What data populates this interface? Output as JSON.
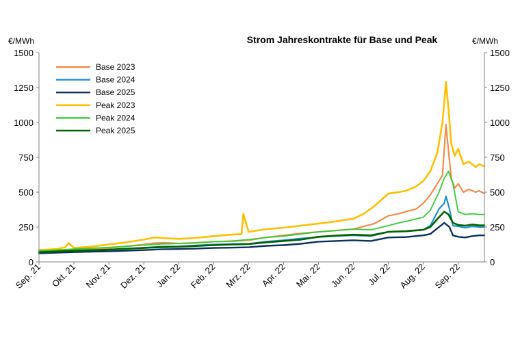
{
  "chart_data": {
    "type": "line",
    "title": "Strom Jahreskontrakte für Base und Peak",
    "y_unit_left": "€/MWh",
    "y_unit_right": "€/MWh",
    "ylim": [
      0,
      1500
    ],
    "yticks": [
      "0",
      "250",
      "500",
      "750",
      "1000",
      "1250",
      "1500"
    ],
    "ytick_values": [
      0,
      250,
      500,
      750,
      1000,
      1250,
      1500
    ],
    "xlim": [
      0,
      12.75
    ],
    "xticks": [
      "Sep. 21",
      "Okt. 21",
      "Nov. 21",
      "Dez. 21",
      "Jan. 22",
      "Feb. 22",
      "Mrz. 22",
      "Apr. 22",
      "Mai. 22",
      "Jun. 22",
      "Jul. 22",
      "Aug. 22",
      "Sep. 22"
    ],
    "grid": false,
    "legend_position": "top-left",
    "series": [
      {
        "name": "Base 2023",
        "color": "#F28C4A",
        "stroke": 2.2,
        "x": [
          0,
          0.5,
          1,
          1.5,
          2,
          2.5,
          3,
          3.3,
          3.6,
          4,
          4.4,
          4.8,
          5,
          5.5,
          6,
          6.5,
          7,
          7.5,
          8,
          8.5,
          9,
          9.3,
          9.6,
          10,
          10.3,
          10.5,
          10.8,
          11,
          11.2,
          11.4,
          11.55,
          11.65,
          11.72,
          11.8,
          11.9,
          12,
          12.15,
          12.3,
          12.5,
          12.6,
          12.75
        ],
        "y": [
          75,
          79,
          86,
          92,
          100,
          112,
          125,
          135,
          138,
          132,
          135,
          140,
          145,
          148,
          155,
          175,
          190,
          205,
          215,
          225,
          235,
          255,
          275,
          330,
          345,
          360,
          380,
          420,
          480,
          560,
          620,
          985,
          800,
          600,
          530,
          560,
          500,
          520,
          500,
          510,
          490
        ]
      },
      {
        "name": "Base 2024",
        "color": "#1E90D0",
        "stroke": 2.2,
        "x": [
          0,
          0.5,
          1,
          1.5,
          2,
          2.5,
          3,
          3.5,
          4,
          4.5,
          5,
          5.5,
          6,
          6.5,
          7,
          7.5,
          8,
          8.5,
          9,
          9.5,
          10,
          10.5,
          11,
          11.2,
          11.45,
          11.6,
          11.65,
          11.75,
          11.85,
          12,
          12.2,
          12.4,
          12.6,
          12.75
        ],
        "y": [
          68,
          72,
          78,
          83,
          88,
          95,
          102,
          110,
          112,
          118,
          125,
          128,
          130,
          145,
          155,
          168,
          178,
          185,
          190,
          185,
          215,
          218,
          230,
          260,
          380,
          420,
          470,
          380,
          260,
          255,
          245,
          255,
          250,
          250
        ]
      },
      {
        "name": "Base 2025",
        "color": "#0B2F5E",
        "stroke": 2.4,
        "x": [
          0,
          0.5,
          1,
          1.5,
          2,
          2.5,
          3,
          3.5,
          4,
          4.5,
          5,
          5.5,
          6,
          6.5,
          7,
          7.5,
          8,
          8.5,
          9,
          9.5,
          10,
          10.5,
          11,
          11.2,
          11.45,
          11.6,
          11.75,
          11.85,
          12,
          12.2,
          12.4,
          12.6,
          12.75
        ],
        "y": [
          62,
          66,
          70,
          73,
          76,
          80,
          85,
          90,
          92,
          95,
          100,
          102,
          105,
          115,
          120,
          130,
          145,
          150,
          155,
          150,
          175,
          178,
          190,
          200,
          250,
          280,
          250,
          190,
          180,
          175,
          185,
          190,
          190
        ]
      },
      {
        "name": "Peak 2023",
        "color": "#FFC000",
        "stroke": 2.6,
        "x": [
          0,
          0.5,
          0.75,
          0.85,
          1,
          1.5,
          2,
          2.5,
          3,
          3.3,
          3.6,
          4,
          4.4,
          4.8,
          5,
          5.5,
          5.8,
          5.85,
          6,
          6.5,
          7,
          7.5,
          8,
          8.5,
          9,
          9.3,
          9.6,
          10,
          10.3,
          10.5,
          10.8,
          11,
          11.2,
          11.4,
          11.55,
          11.65,
          11.72,
          11.8,
          11.9,
          12,
          12.15,
          12.3,
          12.5,
          12.6,
          12.75
        ],
        "y": [
          85,
          92,
          105,
          135,
          100,
          110,
          125,
          140,
          160,
          175,
          170,
          165,
          170,
          180,
          185,
          195,
          200,
          345,
          215,
          235,
          245,
          260,
          275,
          290,
          310,
          345,
          400,
          490,
          500,
          510,
          540,
          580,
          650,
          780,
          1000,
          1290,
          1100,
          850,
          760,
          810,
          700,
          720,
          680,
          700,
          685
        ]
      },
      {
        "name": "Peak 2024",
        "color": "#33CC33",
        "stroke": 1.8,
        "x": [
          0,
          0.5,
          1,
          1.5,
          2,
          2.5,
          3,
          3.5,
          4,
          4.5,
          5,
          5.5,
          6,
          6.5,
          7,
          7.5,
          8,
          8.5,
          9,
          9.5,
          10,
          10.3,
          10.5,
          11,
          11.2,
          11.45,
          11.6,
          11.72,
          11.85,
          12,
          12.2,
          12.4,
          12.6,
          12.75
        ],
        "y": [
          80,
          85,
          92,
          98,
          104,
          112,
          120,
          128,
          132,
          138,
          145,
          150,
          160,
          175,
          185,
          200,
          215,
          225,
          235,
          230,
          260,
          280,
          290,
          320,
          370,
          500,
          600,
          650,
          560,
          360,
          340,
          345,
          340,
          340
        ]
      },
      {
        "name": "Peak 2025",
        "color": "#006400",
        "stroke": 2.6,
        "x": [
          0,
          0.5,
          1,
          1.5,
          2,
          2.5,
          3,
          3.5,
          4,
          4.5,
          5,
          5.5,
          6,
          6.5,
          7,
          7.5,
          8,
          8.5,
          9,
          9.5,
          10,
          10.5,
          11,
          11.2,
          11.45,
          11.6,
          11.72,
          11.85,
          12,
          12.2,
          12.4,
          12.6,
          12.75
        ],
        "y": [
          70,
          75,
          80,
          84,
          88,
          94,
          100,
          106,
          108,
          114,
          120,
          124,
          128,
          140,
          150,
          160,
          180,
          188,
          195,
          190,
          215,
          220,
          230,
          250,
          320,
          360,
          340,
          280,
          265,
          260,
          268,
          262,
          262
        ]
      }
    ]
  }
}
